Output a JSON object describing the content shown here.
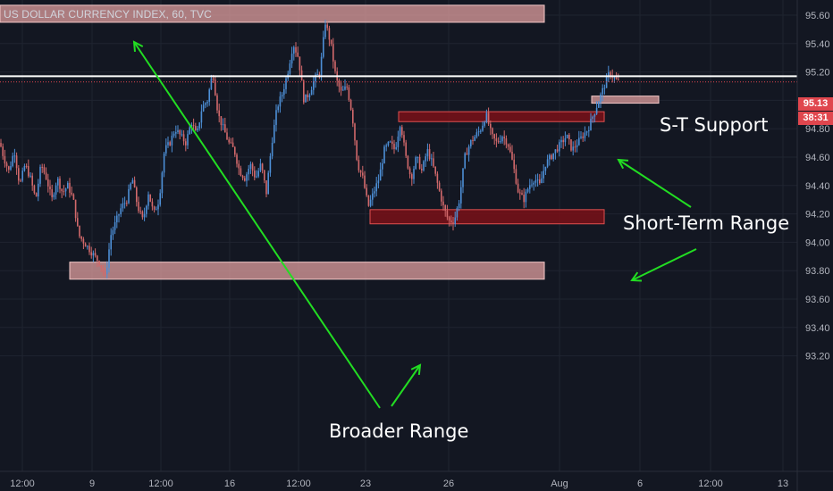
{
  "header": {
    "title": "US DOLLAR CURRENCY INDEX, 60, TVC"
  },
  "colors": {
    "background": "#131722",
    "grid": "#1f2430",
    "candle_up": "#4d8fd6",
    "candle_down": "#d2696b",
    "zone_light": "#e8a4a4",
    "zone_dark": "#7a1118",
    "arrow": "#22dd22",
    "price_line": "#e0464e",
    "axis_text": "#b2b5be"
  },
  "price_tags": {
    "last_price": "95.13",
    "countdown": "38:31"
  },
  "annotations": {
    "st_support": "S-T Support",
    "short_term_range": "Short-Term Range",
    "broader_range": "Broader Range"
  },
  "chart_data": {
    "type": "candlestick",
    "title": "US DOLLAR CURRENCY INDEX, 60, TVC",
    "ylim": [
      93.2,
      95.7
    ],
    "y_ticks": [
      "95.60",
      "95.40",
      "95.20",
      "95.00",
      "94.80",
      "94.60",
      "94.40",
      "94.20",
      "94.00",
      "93.80",
      "93.60",
      "93.40",
      "93.20"
    ],
    "x_ticks": [
      "12:00",
      "9",
      "12:00",
      "16",
      "12:00",
      "23",
      "26",
      "Aug",
      "6",
      "12:00",
      "13"
    ],
    "last_price": 95.13,
    "close_path": [
      [
        0,
        94.7
      ],
      [
        4,
        94.6
      ],
      [
        10,
        94.5
      ],
      [
        16,
        94.65
      ],
      [
        22,
        94.4
      ],
      [
        28,
        94.55
      ],
      [
        34,
        94.45
      ],
      [
        40,
        94.3
      ],
      [
        46,
        94.55
      ],
      [
        52,
        94.45
      ],
      [
        58,
        94.3
      ],
      [
        64,
        94.45
      ],
      [
        70,
        94.35
      ],
      [
        76,
        94.4
      ],
      [
        82,
        94.3
      ],
      [
        88,
        94.05
      ],
      [
        94,
        94.0
      ],
      [
        100,
        93.95
      ],
      [
        106,
        93.9
      ],
      [
        112,
        93.85
      ],
      [
        118,
        93.75
      ],
      [
        124,
        94.05
      ],
      [
        130,
        94.15
      ],
      [
        136,
        94.25
      ],
      [
        142,
        94.3
      ],
      [
        148,
        94.45
      ],
      [
        154,
        94.25
      ],
      [
        160,
        94.15
      ],
      [
        166,
        94.35
      ],
      [
        172,
        94.2
      ],
      [
        178,
        94.3
      ],
      [
        184,
        94.65
      ],
      [
        190,
        94.7
      ],
      [
        196,
        94.8
      ],
      [
        202,
        94.75
      ],
      [
        208,
        94.7
      ],
      [
        214,
        94.85
      ],
      [
        220,
        94.75
      ],
      [
        226,
        94.95
      ],
      [
        232,
        95.0
      ],
      [
        238,
        95.2
      ],
      [
        244,
        94.9
      ],
      [
        250,
        94.8
      ],
      [
        256,
        94.7
      ],
      [
        262,
        94.65
      ],
      [
        268,
        94.5
      ],
      [
        274,
        94.45
      ],
      [
        280,
        94.55
      ],
      [
        286,
        94.45
      ],
      [
        292,
        94.55
      ],
      [
        298,
        94.35
      ],
      [
        304,
        94.7
      ],
      [
        310,
        94.95
      ],
      [
        316,
        95.05
      ],
      [
        322,
        95.2
      ],
      [
        328,
        95.4
      ],
      [
        334,
        95.3
      ],
      [
        340,
        95.0
      ],
      [
        346,
        95.05
      ],
      [
        352,
        95.15
      ],
      [
        358,
        95.2
      ],
      [
        364,
        95.55
      ],
      [
        370,
        95.4
      ],
      [
        376,
        95.15
      ],
      [
        382,
        95.05
      ],
      [
        388,
        95.1
      ],
      [
        394,
        94.9
      ],
      [
        400,
        94.55
      ],
      [
        406,
        94.45
      ],
      [
        412,
        94.25
      ],
      [
        418,
        94.35
      ],
      [
        424,
        94.45
      ],
      [
        430,
        94.65
      ],
      [
        436,
        94.7
      ],
      [
        442,
        94.65
      ],
      [
        448,
        94.85
      ],
      [
        454,
        94.6
      ],
      [
        460,
        94.45
      ],
      [
        466,
        94.6
      ],
      [
        472,
        94.5
      ],
      [
        478,
        94.65
      ],
      [
        484,
        94.55
      ],
      [
        490,
        94.4
      ],
      [
        496,
        94.25
      ],
      [
        502,
        94.15
      ],
      [
        508,
        94.15
      ],
      [
        514,
        94.3
      ],
      [
        520,
        94.6
      ],
      [
        526,
        94.7
      ],
      [
        532,
        94.75
      ],
      [
        538,
        94.8
      ],
      [
        544,
        94.9
      ],
      [
        550,
        94.75
      ],
      [
        556,
        94.7
      ],
      [
        562,
        94.75
      ],
      [
        568,
        94.7
      ],
      [
        574,
        94.55
      ],
      [
        580,
        94.35
      ],
      [
        586,
        94.3
      ],
      [
        592,
        94.4
      ],
      [
        598,
        94.45
      ],
      [
        604,
        94.4
      ],
      [
        610,
        94.55
      ],
      [
        616,
        94.6
      ],
      [
        622,
        94.65
      ],
      [
        628,
        94.7
      ],
      [
        634,
        94.75
      ],
      [
        640,
        94.65
      ],
      [
        646,
        94.7
      ],
      [
        652,
        94.75
      ],
      [
        658,
        94.8
      ],
      [
        664,
        94.9
      ],
      [
        670,
        95.0
      ],
      [
        676,
        95.1
      ],
      [
        682,
        95.2
      ],
      [
        688,
        95.15
      ],
      [
        692,
        95.13
      ]
    ],
    "zones": [
      {
        "name": "broader-range-top",
        "style": "light",
        "x": [
          0,
          609
        ],
        "y": [
          95.55,
          95.67
        ]
      },
      {
        "name": "broader-range-bottom",
        "style": "light",
        "x": [
          78,
          609
        ],
        "y": [
          93.74,
          93.86
        ]
      },
      {
        "name": "short-term-range-top",
        "style": "dark",
        "x": [
          446,
          676
        ],
        "y": [
          94.85,
          94.92
        ]
      },
      {
        "name": "short-term-range-bottom",
        "style": "dark",
        "x": [
          414,
          676
        ],
        "y": [
          94.13,
          94.23
        ]
      },
      {
        "name": "st-support",
        "style": "light",
        "x": [
          662,
          737
        ],
        "y": [
          94.98,
          95.03
        ]
      }
    ],
    "horizontal_lines": [
      {
        "name": "resistance-line",
        "y": 95.17,
        "color": "#ffffff",
        "x": [
          0,
          892
        ]
      },
      {
        "name": "price-line",
        "y": 95.13,
        "color": "#e0464e",
        "x": [
          0,
          892
        ]
      }
    ]
  }
}
